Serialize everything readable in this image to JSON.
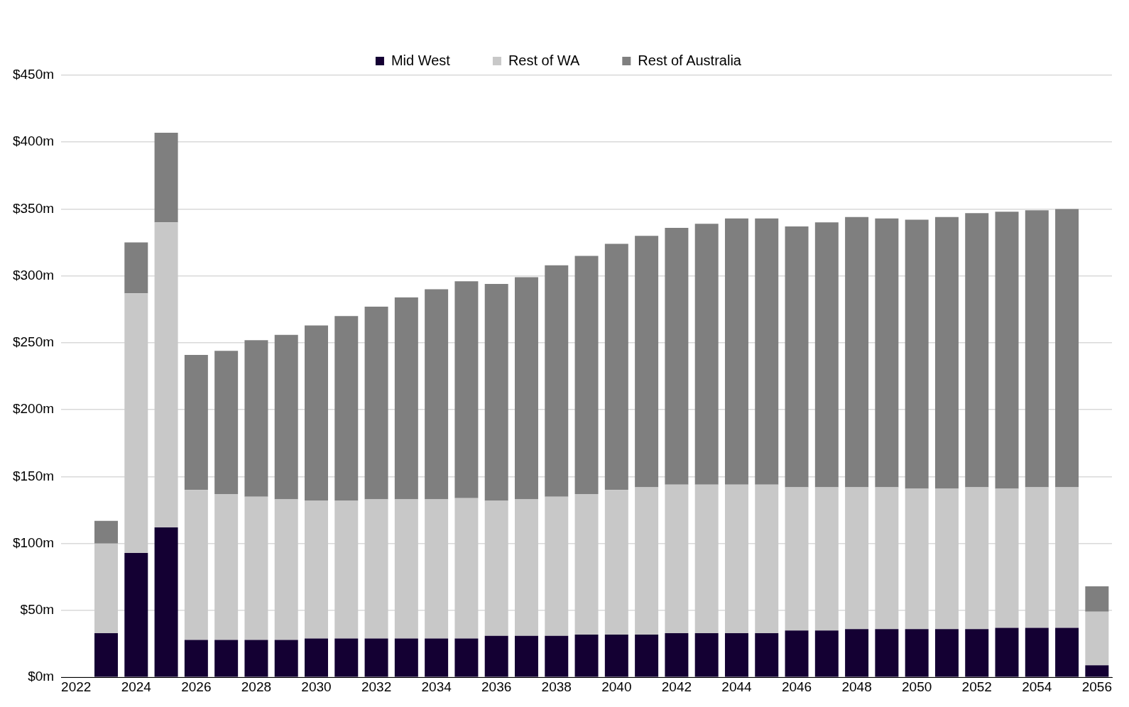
{
  "chart_data": {
    "type": "bar",
    "stacked": true,
    "legend": "top",
    "grid": "y",
    "categories": [
      "2022",
      null,
      "2024",
      null,
      "2026",
      null,
      "2028",
      null,
      "2030",
      null,
      "2032",
      null,
      "2034",
      null,
      "2036",
      null,
      "2038",
      null,
      "2040",
      null,
      "2042",
      null,
      "2044",
      null,
      "2046",
      null,
      "2048",
      null,
      "2050",
      null,
      "2052",
      null,
      "2054",
      null,
      "2056"
    ],
    "series": [
      {
        "name": "Mid West",
        "color": "#140033",
        "values": [
          null,
          33,
          93,
          112,
          28,
          28,
          28,
          28,
          29,
          29,
          29,
          29,
          29,
          29,
          31,
          31,
          31,
          32,
          32,
          32,
          33,
          33,
          33,
          33,
          35,
          35,
          36,
          36,
          36,
          36,
          36,
          37,
          37,
          37,
          9
        ]
      },
      {
        "name": "Rest of WA",
        "color": "#c8c8c8",
        "values": [
          null,
          67,
          194,
          228,
          112,
          109,
          107,
          105,
          103,
          103,
          104,
          104,
          104,
          105,
          101,
          102,
          104,
          105,
          108,
          110,
          111,
          111,
          111,
          111,
          107,
          107,
          106,
          106,
          105,
          105,
          106,
          104,
          105,
          105,
          40
        ]
      },
      {
        "name": "Rest of Australia",
        "color": "#7f7f7f",
        "values": [
          null,
          17,
          38,
          67,
          101,
          107,
          117,
          123,
          131,
          138,
          144,
          151,
          157,
          162,
          162,
          166,
          173,
          178,
          184,
          188,
          192,
          195,
          199,
          199,
          195,
          198,
          202,
          201,
          201,
          203,
          205,
          207,
          207,
          208,
          19
        ]
      }
    ],
    "ylim": [
      0,
      450
    ],
    "yticks": [
      {
        "value": 0,
        "label": "$0m"
      },
      {
        "value": 50,
        "label": "$50m"
      },
      {
        "value": 100,
        "label": "$100m"
      },
      {
        "value": 150,
        "label": "$150m"
      },
      {
        "value": 200,
        "label": "$200m"
      },
      {
        "value": 250,
        "label": "$250m"
      },
      {
        "value": 300,
        "label": "$300m"
      },
      {
        "value": 350,
        "label": "$350m"
      },
      {
        "value": 400,
        "label": "$400m"
      },
      {
        "value": 450,
        "label": "$450m"
      }
    ]
  }
}
